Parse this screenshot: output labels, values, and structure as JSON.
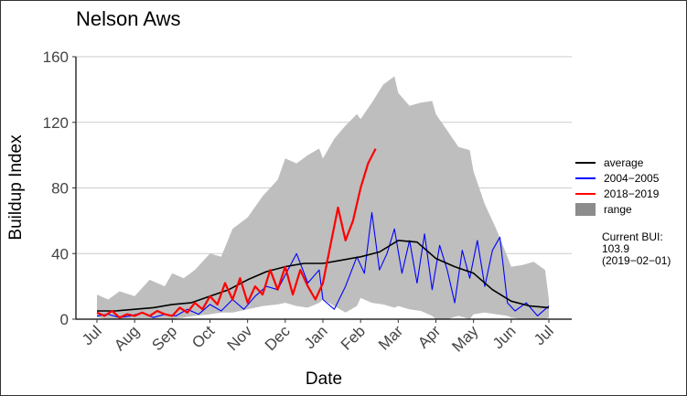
{
  "chart_data": {
    "type": "line",
    "title": "Nelson Aws",
    "xlabel": "Date",
    "ylabel": "Buildup Index",
    "ylim": [
      0,
      160
    ],
    "yticks": [
      0,
      40,
      80,
      120,
      160
    ],
    "x_unit": "month",
    "xlim": [
      0,
      12
    ],
    "xticks": [
      "Jul",
      "Aug",
      "Sep",
      "Oct",
      "Nov",
      "Dec",
      "Jan",
      "Feb",
      "Mar",
      "Apr",
      "May",
      "Jun",
      "Jul"
    ],
    "grid": true,
    "legend_position": "right",
    "colors": {
      "average": "#000000",
      "series_2004_2005": "#0000ff",
      "series_2018_2019": "#ff0000",
      "range": "#bebebe",
      "range_legend": "#8c8c8c",
      "grid": "#cccccc"
    },
    "range": {
      "name": "range",
      "x": [
        0,
        0.3,
        0.6,
        1.0,
        1.4,
        1.8,
        2.0,
        2.3,
        2.6,
        3.0,
        3.3,
        3.6,
        4.0,
        4.4,
        4.8,
        5.0,
        5.3,
        5.6,
        5.9,
        6.0,
        6.3,
        6.6,
        6.9,
        7.0,
        7.3,
        7.6,
        7.9,
        8.0,
        8.3,
        8.6,
        8.9,
        9.0,
        9.3,
        9.6,
        9.9,
        10.0,
        10.3,
        10.6,
        10.9,
        11.0,
        11.3,
        11.6,
        11.9,
        12.0
      ],
      "upper": [
        15,
        12,
        17,
        14,
        24,
        20,
        28,
        25,
        30,
        40,
        38,
        55,
        62,
        75,
        85,
        98,
        95,
        100,
        104,
        98,
        110,
        118,
        125,
        122,
        132,
        143,
        148,
        138,
        130,
        132,
        133,
        125,
        115,
        105,
        103,
        90,
        70,
        55,
        38,
        32,
        33,
        35,
        30,
        12
      ],
      "lower": [
        1,
        0,
        0,
        0,
        0,
        0,
        0,
        1,
        2,
        3,
        4,
        4,
        6,
        8,
        9,
        10,
        8,
        7,
        10,
        12,
        8,
        4,
        8,
        13,
        10,
        9,
        7,
        8,
        6,
        5,
        2,
        0,
        0,
        2,
        0,
        3,
        4,
        3,
        2,
        1,
        0,
        0,
        0,
        1
      ]
    },
    "series": [
      {
        "name": "average",
        "x": [
          0,
          0.5,
          1.0,
          1.5,
          2.0,
          2.5,
          3.0,
          3.5,
          4.0,
          4.5,
          5.0,
          5.5,
          6.0,
          6.5,
          7.0,
          7.5,
          8.0,
          8.5,
          9.0,
          9.5,
          10.0,
          10.5,
          11.0,
          11.5,
          12.0
        ],
        "values": [
          5,
          5,
          6,
          7,
          9,
          10,
          14,
          18,
          24,
          29,
          32,
          34,
          34,
          36,
          38,
          41,
          48,
          47,
          37,
          32,
          28,
          18,
          11,
          8,
          7
        ]
      },
      {
        "name": "2004−2005",
        "x": [
          0,
          0.3,
          0.6,
          0.9,
          1.2,
          1.5,
          1.8,
          2.1,
          2.4,
          2.7,
          3.0,
          3.3,
          3.6,
          3.9,
          4.2,
          4.5,
          4.8,
          5.0,
          5.3,
          5.6,
          5.9,
          6.0,
          6.3,
          6.6,
          6.9,
          7.1,
          7.3,
          7.5,
          7.7,
          7.9,
          8.1,
          8.3,
          8.5,
          8.7,
          8.9,
          9.1,
          9.3,
          9.5,
          9.7,
          9.9,
          10.1,
          10.3,
          10.5,
          10.7,
          10.9,
          11.1,
          11.4,
          11.7,
          12.0
        ],
        "values": [
          2,
          3,
          1,
          2,
          4,
          1,
          3,
          2,
          6,
          3,
          9,
          5,
          12,
          6,
          14,
          20,
          18,
          27,
          40,
          22,
          30,
          12,
          6,
          20,
          38,
          28,
          65,
          30,
          40,
          55,
          28,
          48,
          22,
          52,
          18,
          45,
          30,
          10,
          42,
          25,
          48,
          20,
          42,
          50,
          10,
          5,
          10,
          2,
          8
        ]
      },
      {
        "name": "2018−2019",
        "x": [
          0,
          0.2,
          0.4,
          0.6,
          0.8,
          1.0,
          1.2,
          1.4,
          1.6,
          1.8,
          2.0,
          2.2,
          2.4,
          2.6,
          2.8,
          3.0,
          3.2,
          3.4,
          3.6,
          3.8,
          4.0,
          4.2,
          4.4,
          4.6,
          4.8,
          5.0,
          5.2,
          5.4,
          5.6,
          5.8,
          6.0,
          6.2,
          6.4,
          6.6,
          6.8,
          7.0,
          7.2,
          7.4
        ],
        "values": [
          4,
          2,
          5,
          1,
          3,
          2,
          4,
          2,
          5,
          3,
          2,
          7,
          4,
          10,
          6,
          14,
          9,
          22,
          12,
          25,
          10,
          20,
          15,
          30,
          18,
          32,
          15,
          30,
          20,
          12,
          22,
          45,
          68,
          48,
          60,
          80,
          95,
          103.9
        ]
      }
    ],
    "legend": [
      "average",
      "2004−2005",
      "2018−2019",
      "range"
    ],
    "annotation": {
      "line1": "Current BUI:",
      "line2": "103.9",
      "line3": "(2019−02−01)"
    }
  }
}
